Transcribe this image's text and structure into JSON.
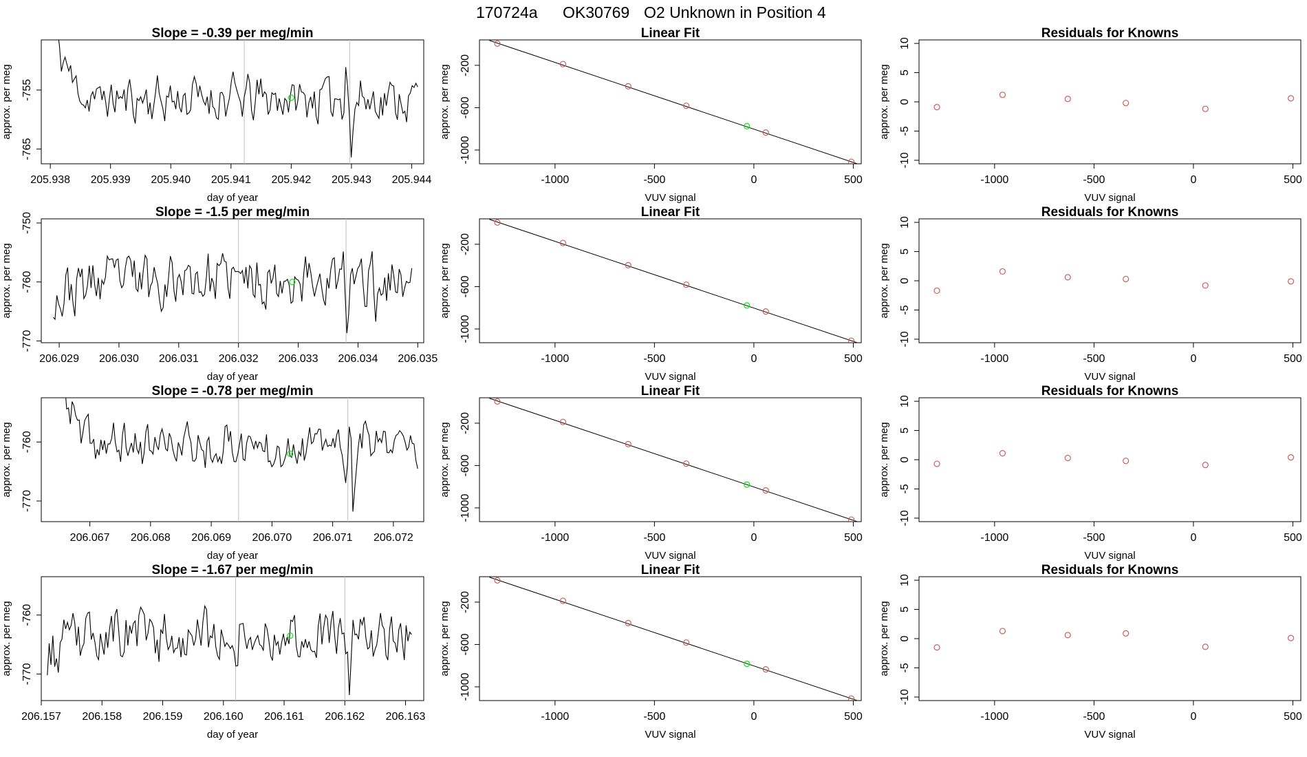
{
  "figure": {
    "title_parts": [
      "170724a",
      "OK30769",
      "O2 Unknown in Position  4"
    ]
  },
  "colors": {
    "trace": "#000000",
    "known_points": "#cd5c5c",
    "unknown_point": "#00ee00",
    "marker_lines": "#bebebe"
  },
  "chart_data": [
    {
      "type": "line",
      "panel": "time-series",
      "row": 1,
      "title": "Slope =  -0.39  per meg/min",
      "xlabel": "day of year",
      "ylabel": "approx. per meg",
      "xlim": [
        205.93785,
        205.9442
      ],
      "ylim": [
        -767.5,
        -746.5
      ],
      "xticks": [
        "205.938",
        "205.939",
        "205.940",
        "205.941",
        "205.942",
        "205.943",
        "205.944"
      ],
      "yticks": [
        "-755",
        "-765"
      ],
      "vlines": [
        205.94122,
        205.94297
      ],
      "unknown_marker": {
        "x": 205.942,
        "y": -756.3
      },
      "trace": {
        "x_start": 205.938,
        "x_end": 205.9441,
        "n": 200,
        "start_level": -743,
        "settle_at": 0.12,
        "base": -756.5,
        "noise": 2.0,
        "seed": 11,
        "dips": [
          {
            "at": 0.82,
            "y": -768
          },
          {
            "at": 0.805,
            "y": -750
          }
        ]
      }
    },
    {
      "type": "line",
      "panel": "time-series",
      "row": 2,
      "title": "Slope =  -1.5  per meg/min",
      "xlabel": "day of year",
      "ylabel": "approx. per meg",
      "xlim": [
        206.0287,
        206.0351
      ],
      "ylim": [
        -770.3,
        -749.3
      ],
      "xticks": [
        "206.029",
        "206.030",
        "206.031",
        "206.032",
        "206.033",
        "206.034",
        "206.035"
      ],
      "yticks": [
        "-750",
        "-760",
        "-770"
      ],
      "vlines": [
        206.032,
        206.0338
      ],
      "unknown_marker": {
        "x": 206.0329,
        "y": -760.0
      },
      "trace": {
        "x_start": 206.0289,
        "x_end": 206.0349,
        "n": 200,
        "start_level": -763,
        "settle_at": 0.2,
        "base": -759.5,
        "noise": 2.3,
        "seed": 23,
        "dips": [
          {
            "at": 0.82,
            "y": -770.2
          },
          {
            "at": 0.9,
            "y": -767
          }
        ]
      }
    },
    {
      "type": "line",
      "panel": "time-series",
      "row": 3,
      "title": "Slope =  -0.78  per meg/min",
      "xlabel": "day of year",
      "ylabel": "approx. per meg",
      "xlim": [
        206.0662,
        206.0725
      ],
      "ylim": [
        -773.5,
        -752.5
      ],
      "xticks": [
        "206.067",
        "206.068",
        "206.069",
        "206.070",
        "206.071",
        "206.072"
      ],
      "yticks": [
        "-760",
        "-770"
      ],
      "vlines": [
        206.06945,
        206.07125
      ],
      "unknown_marker": {
        "x": 206.0703,
        "y": -762.0
      },
      "trace": {
        "x_start": 206.0665,
        "x_end": 206.0724,
        "n": 200,
        "start_level": -748,
        "settle_at": 0.1,
        "base": -760.5,
        "noise": 1.9,
        "seed": 37,
        "dips": [
          {
            "at": 0.82,
            "y": -773.4
          },
          {
            "at": 0.8,
            "y": -768
          }
        ]
      }
    },
    {
      "type": "line",
      "panel": "time-series",
      "row": 4,
      "title": "Slope =  -1.67  per meg/min",
      "xlabel": "day of year",
      "ylabel": "approx. per meg",
      "xlim": [
        206.157,
        206.1633
      ],
      "ylim": [
        -774.5,
        -753.5
      ],
      "xticks": [
        "206.157",
        "206.158",
        "206.159",
        "206.160",
        "206.161",
        "206.162",
        "206.163"
      ],
      "yticks": [
        "-760",
        "-770"
      ],
      "vlines": [
        206.1602,
        206.162
      ],
      "unknown_marker": {
        "x": 206.1611,
        "y": -763.5
      },
      "trace": {
        "x_start": 206.1571,
        "x_end": 206.1631,
        "n": 200,
        "start_level": -767,
        "settle_at": 0.15,
        "base": -763.5,
        "noise": 2.3,
        "seed": 53,
        "dips": [
          {
            "at": 0.83,
            "y": -774.4
          },
          {
            "at": 0.86,
            "y": -760
          }
        ]
      }
    },
    {
      "type": "scatter",
      "panel": "linear-fit",
      "row": 1,
      "title": "Linear Fit",
      "xlabel": "VUV signal",
      "ylabel": "approx. per meg",
      "xlim": [
        -1380,
        540
      ],
      "ylim": [
        -1130,
        40
      ],
      "xticks": [
        -1000,
        -500,
        0,
        500
      ],
      "yticks": [
        -200,
        -600,
        -1000
      ],
      "knowns": [
        {
          "x": -1290,
          "y": 5
        },
        {
          "x": -960,
          "y": -188
        },
        {
          "x": -632,
          "y": -398
        },
        {
          "x": -340,
          "y": -582
        },
        {
          "x": 60,
          "y": -835
        },
        {
          "x": 490,
          "y": -1111
        }
      ],
      "unknown": {
        "x": -35,
        "y": -775
      },
      "fit_line": {
        "x1": -1330,
        "y1": 35,
        "x2": 520,
        "y2": -1130
      }
    },
    {
      "type": "scatter",
      "panel": "linear-fit",
      "row": 2,
      "title": "Linear Fit",
      "xlabel": "VUV signal",
      "ylabel": "approx. per meg",
      "xlim": [
        -1380,
        540
      ],
      "ylim": [
        -1130,
        40
      ],
      "xticks": [
        -1000,
        -500,
        0,
        500
      ],
      "yticks": [
        -200,
        -600,
        -1000
      ],
      "knowns": [
        {
          "x": -1290,
          "y": 5
        },
        {
          "x": -960,
          "y": -188
        },
        {
          "x": -632,
          "y": -398
        },
        {
          "x": -340,
          "y": -582
        },
        {
          "x": 60,
          "y": -835
        },
        {
          "x": 490,
          "y": -1111
        }
      ],
      "unknown": {
        "x": -35,
        "y": -778
      },
      "fit_line": {
        "x1": -1330,
        "y1": 35,
        "x2": 520,
        "y2": -1130
      }
    },
    {
      "type": "scatter",
      "panel": "linear-fit",
      "row": 3,
      "title": "Linear Fit",
      "xlabel": "VUV signal",
      "ylabel": "approx. per meg",
      "xlim": [
        -1380,
        540
      ],
      "ylim": [
        -1130,
        40
      ],
      "xticks": [
        -1000,
        -500,
        0,
        500
      ],
      "yticks": [
        -200,
        -600,
        -1000
      ],
      "knowns": [
        {
          "x": -1290,
          "y": 5
        },
        {
          "x": -960,
          "y": -188
        },
        {
          "x": -632,
          "y": -398
        },
        {
          "x": -340,
          "y": -582
        },
        {
          "x": 60,
          "y": -835
        },
        {
          "x": 490,
          "y": -1111
        }
      ],
      "unknown": {
        "x": -35,
        "y": -780
      },
      "fit_line": {
        "x1": -1330,
        "y1": 35,
        "x2": 520,
        "y2": -1130
      }
    },
    {
      "type": "scatter",
      "panel": "linear-fit",
      "row": 4,
      "title": "Linear Fit",
      "xlabel": "VUV signal",
      "ylabel": "approx. per meg",
      "xlim": [
        -1380,
        540
      ],
      "ylim": [
        -1130,
        40
      ],
      "xticks": [
        -1000,
        -500,
        0,
        500
      ],
      "yticks": [
        -200,
        -600,
        -1000
      ],
      "knowns": [
        {
          "x": -1290,
          "y": 5
        },
        {
          "x": -960,
          "y": -188
        },
        {
          "x": -632,
          "y": -398
        },
        {
          "x": -340,
          "y": -582
        },
        {
          "x": 60,
          "y": -835
        },
        {
          "x": 490,
          "y": -1111
        }
      ],
      "unknown": {
        "x": -35,
        "y": -783
      },
      "fit_line": {
        "x1": -1330,
        "y1": 35,
        "x2": 520,
        "y2": -1130
      }
    },
    {
      "type": "scatter",
      "panel": "residuals",
      "row": 1,
      "title": "Residuals for Knowns",
      "xlabel": "VUV signal",
      "ylabel": "approx. per meg",
      "xlim": [
        -1380,
        540
      ],
      "ylim": [
        -10.6,
        10.6
      ],
      "xticks": [
        -1000,
        -500,
        0,
        500
      ],
      "yticks": [
        10,
        5,
        0,
        -5,
        -10
      ],
      "points": [
        {
          "x": -1290,
          "y": -0.9
        },
        {
          "x": -960,
          "y": 1.2
        },
        {
          "x": -632,
          "y": 0.5
        },
        {
          "x": -340,
          "y": -0.2
        },
        {
          "x": 60,
          "y": -1.2
        },
        {
          "x": 490,
          "y": 0.6
        }
      ]
    },
    {
      "type": "scatter",
      "panel": "residuals",
      "row": 2,
      "title": "Residuals for Knowns",
      "xlabel": "VUV signal",
      "ylabel": "approx. per meg",
      "xlim": [
        -1380,
        540
      ],
      "ylim": [
        -10.6,
        10.6
      ],
      "xticks": [
        -1000,
        -500,
        0,
        500
      ],
      "yticks": [
        10,
        5,
        0,
        -5,
        -10
      ],
      "points": [
        {
          "x": -1290,
          "y": -1.7
        },
        {
          "x": -960,
          "y": 1.6
        },
        {
          "x": -632,
          "y": 0.6
        },
        {
          "x": -340,
          "y": 0.3
        },
        {
          "x": 60,
          "y": -0.8
        },
        {
          "x": 490,
          "y": -0.1
        }
      ]
    },
    {
      "type": "scatter",
      "panel": "residuals",
      "row": 3,
      "title": "Residuals for Knowns",
      "xlabel": "VUV signal",
      "ylabel": "approx. per meg",
      "xlim": [
        -1380,
        540
      ],
      "ylim": [
        -10.6,
        10.6
      ],
      "xticks": [
        -1000,
        -500,
        0,
        500
      ],
      "yticks": [
        10,
        5,
        0,
        -5,
        -10
      ],
      "points": [
        {
          "x": -1290,
          "y": -0.7
        },
        {
          "x": -960,
          "y": 1.1
        },
        {
          "x": -632,
          "y": 0.3
        },
        {
          "x": -340,
          "y": -0.2
        },
        {
          "x": 60,
          "y": -0.9
        },
        {
          "x": 490,
          "y": 0.4
        }
      ]
    },
    {
      "type": "scatter",
      "panel": "residuals",
      "row": 4,
      "title": "Residuals for Knowns",
      "xlabel": "VUV signal",
      "ylabel": "approx. per meg",
      "xlim": [
        -1380,
        540
      ],
      "ylim": [
        -10.6,
        10.6
      ],
      "xticks": [
        -1000,
        -500,
        0,
        500
      ],
      "yticks": [
        10,
        5,
        0,
        -5,
        -10
      ],
      "points": [
        {
          "x": -1290,
          "y": -1.5
        },
        {
          "x": -960,
          "y": 1.3
        },
        {
          "x": -632,
          "y": 0.6
        },
        {
          "x": -340,
          "y": 0.9
        },
        {
          "x": 60,
          "y": -1.4
        },
        {
          "x": 490,
          "y": 0.1
        }
      ]
    }
  ]
}
